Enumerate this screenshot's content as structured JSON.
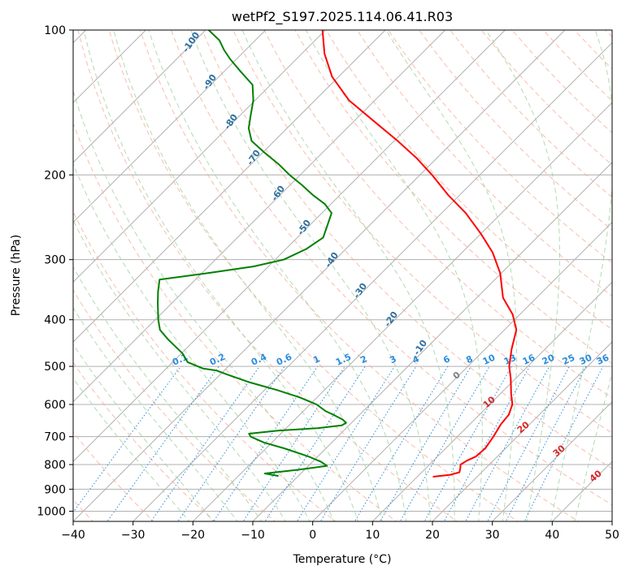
{
  "chart_data": {
    "type": "skew-t",
    "title": "wetPf2_S197.2025.114.06.41.R03",
    "xlabel": "Temperature (°C)",
    "ylabel": "Pressure (hPa)",
    "xlim": [
      -40,
      50
    ],
    "ylim": [
      1050,
      100
    ],
    "y_scale": "log",
    "x_ticks": [
      -40,
      -30,
      -20,
      -10,
      0,
      10,
      20,
      30,
      40,
      50
    ],
    "y_ticks": [
      100,
      200,
      300,
      400,
      500,
      600,
      700,
      800,
      900,
      1000
    ],
    "grid": true,
    "series": [
      {
        "color": "#ff0000",
        "points": [
          [
            848,
            12.6
          ],
          [
            840,
            15.2
          ],
          [
            830,
            16.3
          ],
          [
            815,
            15.8
          ],
          [
            800,
            15.2
          ],
          [
            785,
            15.6
          ],
          [
            770,
            16.4
          ],
          [
            740,
            16.6
          ],
          [
            700,
            16.0
          ],
          [
            660,
            15.2
          ],
          [
            630,
            14.9
          ],
          [
            600,
            13.8
          ],
          [
            570,
            11.8
          ],
          [
            530,
            9.2
          ],
          [
            500,
            6.9
          ],
          [
            460,
            4.4
          ],
          [
            420,
            2.0
          ],
          [
            390,
            -1.2
          ],
          [
            360,
            -5.6
          ],
          [
            320,
            -10.2
          ],
          [
            290,
            -14.9
          ],
          [
            265,
            -20.0
          ],
          [
            240,
            -26.0
          ],
          [
            220,
            -32.0
          ],
          [
            200,
            -38.0
          ],
          [
            185,
            -43.2
          ],
          [
            170,
            -49.4
          ],
          [
            155,
            -56.5
          ],
          [
            140,
            -64.3
          ],
          [
            125,
            -71.1
          ],
          [
            112,
            -76.2
          ],
          [
            100,
            -80.5
          ]
        ]
      },
      {
        "color": "#008000",
        "points": [
          [
            845,
            -13.3
          ],
          [
            835,
            -16.0
          ],
          [
            820,
            -11.0
          ],
          [
            805,
            -6.9
          ],
          [
            790,
            -8.5
          ],
          [
            770,
            -11.5
          ],
          [
            740,
            -17.0
          ],
          [
            720,
            -21.3
          ],
          [
            700,
            -24.5
          ],
          [
            690,
            -25.3
          ],
          [
            680,
            -21.0
          ],
          [
            672,
            -14.8
          ],
          [
            663,
            -11.2
          ],
          [
            655,
            -10.9
          ],
          [
            645,
            -12.0
          ],
          [
            630,
            -14.4
          ],
          [
            620,
            -16.2
          ],
          [
            600,
            -18.9
          ],
          [
            580,
            -22.9
          ],
          [
            560,
            -27.9
          ],
          [
            540,
            -33.7
          ],
          [
            520,
            -38.8
          ],
          [
            510,
            -41.3
          ],
          [
            505,
            -43.9
          ],
          [
            490,
            -47.5
          ],
          [
            470,
            -49.8
          ],
          [
            440,
            -54.5
          ],
          [
            420,
            -57.5
          ],
          [
            400,
            -59.5
          ],
          [
            390,
            -60.4
          ],
          [
            370,
            -62.3
          ],
          [
            350,
            -64.2
          ],
          [
            330,
            -66.0
          ],
          [
            320,
            -59.0
          ],
          [
            310,
            -52.5
          ],
          [
            300,
            -48.6
          ],
          [
            285,
            -46.6
          ],
          [
            270,
            -45.7
          ],
          [
            255,
            -47.0
          ],
          [
            240,
            -48.4
          ],
          [
            230,
            -51.0
          ],
          [
            220,
            -54.6
          ],
          [
            210,
            -58.0
          ],
          [
            200,
            -61.8
          ],
          [
            190,
            -65.4
          ],
          [
            180,
            -69.6
          ],
          [
            170,
            -73.8
          ],
          [
            160,
            -76.4
          ],
          [
            150,
            -78.3
          ],
          [
            140,
            -80.3
          ],
          [
            130,
            -83.0
          ],
          [
            122,
            -87.2
          ],
          [
            115,
            -91.0
          ],
          [
            110,
            -93.6
          ],
          [
            105,
            -96.0
          ],
          [
            100,
            -99.5
          ]
        ]
      }
    ],
    "dry_adiabat_labels": [
      "-100",
      "-90",
      "-80",
      "-70",
      "-60",
      "-50",
      "-40",
      "-30",
      "-20",
      "-10"
    ],
    "mixing_ratio_labels": [
      "0.1",
      "0.2",
      "0.4",
      "0.6",
      "1",
      "1.5",
      "2",
      "3",
      "4",
      "6",
      "8",
      "10",
      "13",
      "16",
      "20",
      "25",
      "30",
      "36"
    ],
    "moist_adiabat_labels": [
      "0",
      "10",
      "20",
      "30",
      "40"
    ]
  }
}
